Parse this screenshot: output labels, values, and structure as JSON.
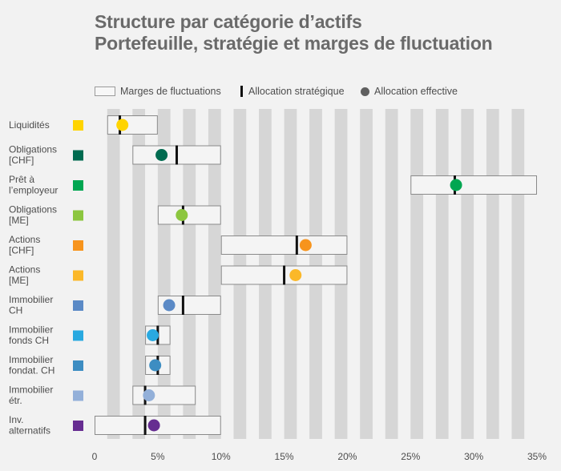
{
  "title_line1": "Structure par catégorie d’actifs",
  "title_line2": "Portefeuille, stratégie et marges de fluctuation",
  "legend": {
    "range": "Marges de fluctuations",
    "strategic": "Allocation stratégique",
    "actual": "Allocation effective"
  },
  "chart_data": {
    "type": "range-dot",
    "title": "Structure par catégorie d’actifs — Portefeuille, stratégie et marges de fluctuation",
    "xlim": [
      0,
      35
    ],
    "xticks": [
      0,
      5,
      10,
      15,
      20,
      25,
      30,
      35
    ],
    "xtick_labels": [
      "0",
      "5%",
      "10%",
      "15%",
      "20%",
      "25%",
      "30%",
      "35%"
    ],
    "categories": [
      {
        "lines": [
          "Liquidités"
        ],
        "color": "#ffd400",
        "range": [
          1,
          5
        ],
        "strategic": 2,
        "actual": 2.2
      },
      {
        "lines": [
          "Obligations",
          "[CHF]"
        ],
        "color": "#006b50",
        "range": [
          3,
          10
        ],
        "strategic": 6.5,
        "actual": 5.3
      },
      {
        "lines": [
          "Prêt à",
          "l’employeur"
        ],
        "color": "#00a651",
        "range": [
          25,
          35
        ],
        "strategic": 28.5,
        "actual": 28.6
      },
      {
        "lines": [
          "Obligations",
          "[ME]"
        ],
        "color": "#8cc63f",
        "range": [
          5,
          10
        ],
        "strategic": 7,
        "actual": 6.9
      },
      {
        "lines": [
          "Actions",
          "[CHF]"
        ],
        "color": "#f7941d",
        "range": [
          10,
          20
        ],
        "strategic": 16,
        "actual": 16.7
      },
      {
        "lines": [
          "Actions",
          "[ME]"
        ],
        "color": "#fbb829",
        "range": [
          10,
          20
        ],
        "strategic": 15,
        "actual": 15.9
      },
      {
        "lines": [
          "Immobilier",
          "CH"
        ],
        "color": "#5b8ac6",
        "range": [
          5,
          10
        ],
        "strategic": 7,
        "actual": 5.9
      },
      {
        "lines": [
          "Immobilier",
          "fonds CH"
        ],
        "color": "#29a9e0",
        "range": [
          4,
          6
        ],
        "strategic": 5,
        "actual": 4.6
      },
      {
        "lines": [
          "Immobilier",
          "fondat. CH"
        ],
        "color": "#3d8dc2",
        "range": [
          4,
          6
        ],
        "strategic": 5,
        "actual": 4.8
      },
      {
        "lines": [
          "Immobilier",
          "étr."
        ],
        "color": "#93b0d9",
        "range": [
          3,
          8
        ],
        "strategic": 4,
        "actual": 4.3
      },
      {
        "lines": [
          "Inv.",
          "alternatifs"
        ],
        "color": "#662d91",
        "range": [
          0,
          10
        ],
        "strategic": 4,
        "actual": 4.7
      }
    ]
  }
}
